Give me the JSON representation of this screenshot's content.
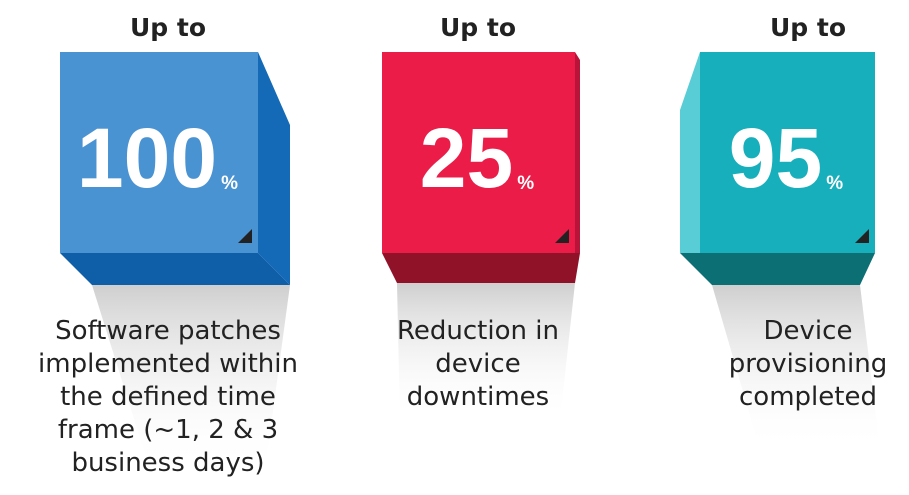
{
  "items": [
    {
      "prefix": "Up to",
      "value": 100,
      "unit": "%",
      "description_lines": [
        "Software patches",
        "implemented within",
        "the defined time",
        "frame (~1, 2 & 3",
        "business days)"
      ]
    },
    {
      "prefix": "Up to",
      "value": 25,
      "unit": "%",
      "description_lines": [
        "Reduction in",
        "device",
        "downtimes"
      ]
    },
    {
      "prefix": "Up to",
      "value": 95,
      "unit": "%",
      "description_lines": [
        "Device",
        "provisioning",
        "completed"
      ]
    }
  ]
}
